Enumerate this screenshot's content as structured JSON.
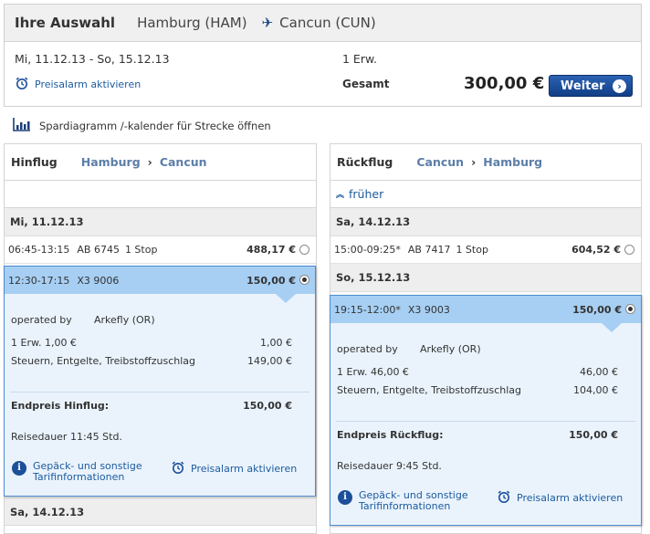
{
  "summary": {
    "title": "Ihre Auswahl",
    "origin": "Hamburg (HAM)",
    "destination": "Cancun (CUN)",
    "dates": "Mi, 11.12.13 - So, 15.12.13",
    "passengers": "1 Erw.",
    "price_alert": "Preisalarm aktivieren",
    "total_label": "Gesamt",
    "total_value": "300,00 €",
    "continue_label": "Weiter"
  },
  "spar_link": "Spardiagramm /-kalender für Strecke öffnen",
  "outbound": {
    "heading": "Hinflug",
    "from": "Hamburg",
    "to": "Cancun",
    "date1": "Mi, 11.12.13",
    "flight1": {
      "time": "06:45-13:15",
      "number": "AB 6745",
      "stops": "1 Stop",
      "price": "488,17 €"
    },
    "selected": {
      "time": "12:30-17:15",
      "number": "X3 9006",
      "price": "150,00 €",
      "operated_label": "operated by",
      "operator": "Arkefly (OR)",
      "fare_label": "1 Erw. 1,00 €",
      "fare_value": "1,00 €",
      "taxes_label": "Steuern, Entgelte, Treibstoffzuschlag",
      "taxes_value": "149,00 €",
      "final_label": "Endpreis Hinflug:",
      "final_value": "150,00 €",
      "duration": "Reisedauer 11:45 Std.",
      "info_link": "Gepäck- und sonstige Tarifinformationen",
      "alarm_link": "Preisalarm aktivieren"
    },
    "date2": "Sa, 14.12.13"
  },
  "return": {
    "heading": "Rückflug",
    "from": "Cancun",
    "to": "Hamburg",
    "earlier": "früher",
    "date1": "Sa, 14.12.13",
    "flight1": {
      "time": "15:00-09:25*",
      "number": "AB 7417",
      "stops": "1 Stop",
      "price": "604,52 €"
    },
    "date2": "So, 15.12.13",
    "selected": {
      "time": "19:15-12:00*",
      "number": "X3 9003",
      "price": "150,00 €",
      "operated_label": "operated by",
      "operator": "Arkefly (OR)",
      "fare_label": "1 Erw. 46,00 €",
      "fare_value": "46,00 €",
      "taxes_label": "Steuern, Entgelte, Treibstoffzuschlag",
      "taxes_value": "104,00 €",
      "final_label": "Endpreis Rückflug:",
      "final_value": "150,00 €",
      "duration": "Reisedauer 9:45 Std.",
      "info_link": "Gepäck- und sonstige Tarifinformationen",
      "alarm_link": "Preisalarm aktivieren"
    }
  },
  "colors": {
    "accent": "#1b5a9e",
    "button": "#1a4b98",
    "selected_bg": "#a7cff3",
    "detail_bg": "#eaf3fc"
  },
  "icons": [
    "plane-icon",
    "alarm-clock-icon",
    "chart-icon",
    "chevron-right-icon",
    "chevron-up-icon",
    "info-icon",
    "radio-icon"
  ]
}
